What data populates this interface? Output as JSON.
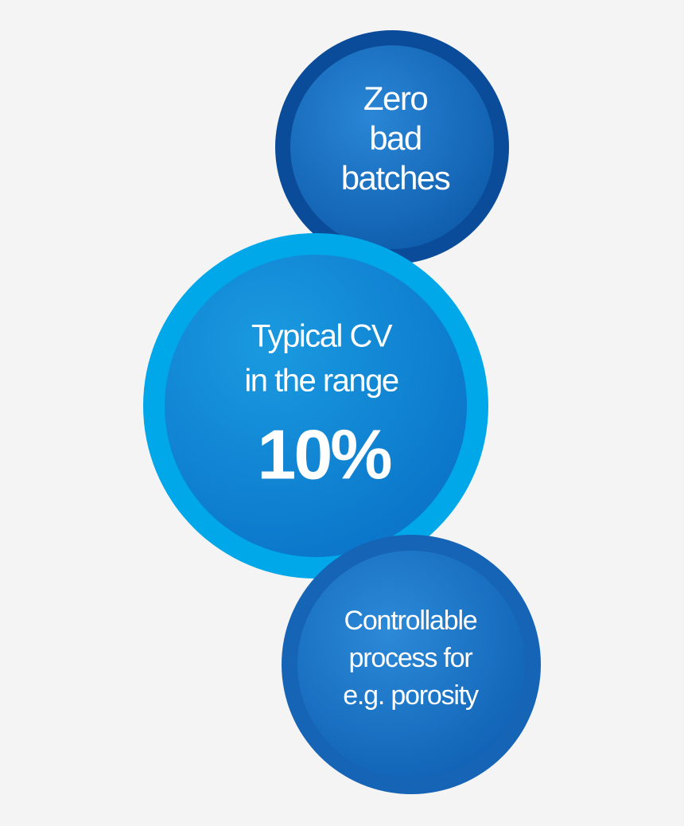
{
  "circles": [
    {
      "lines": [
        "Zero",
        "bad",
        "batches"
      ]
    },
    {
      "lines": [
        "Typical CV",
        "in the range"
      ],
      "highlight": "10%"
    },
    {
      "lines": [
        "Controllable",
        "process for",
        "e.g. porosity"
      ]
    }
  ]
}
